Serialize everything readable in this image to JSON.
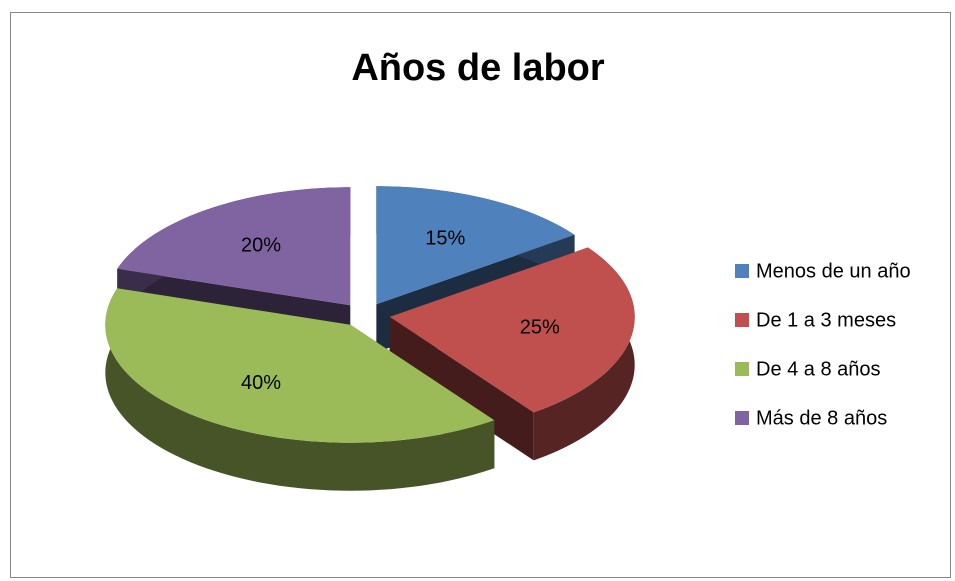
{
  "chart_data": {
    "type": "pie",
    "title": "Años de labor",
    "categories": [
      "Menos de un año",
      "De 1 a 3 meses",
      "De 4 a 8 años",
      "Más de 8 años"
    ],
    "values": [
      15,
      25,
      40,
      20
    ],
    "value_labels": [
      "15%",
      "25%",
      "40%",
      "20%"
    ],
    "colors": [
      "#4f81bd",
      "#c0504d",
      "#9bbb59",
      "#8064a2"
    ],
    "legend": "right"
  }
}
